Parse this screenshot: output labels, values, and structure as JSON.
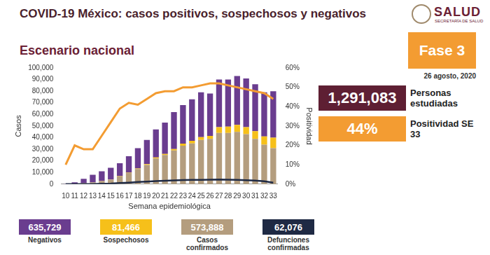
{
  "header": {
    "logo": "SALUD",
    "logo_subtitle": "SECRETARÍA DE SALUD",
    "badge": "Fase 3",
    "date": "26 agosto, 2020"
  },
  "stats": [
    {
      "value": {
        "value": 1291083,
        "label": "1,291,083"
      },
      "label": "Personas estudiadas",
      "color": "#5e1f33"
    },
    {
      "value": {
        "value": 44,
        "label": "44%"
      },
      "label": "Positividad SE 33",
      "color": "#f39c32"
    }
  ],
  "chart_data": {
    "type": "bar",
    "title": "COVID-19 México: casos positivos, sospechosos y negativos",
    "subtitle": "Escenario nacional",
    "xlabel": "Semana epidemiológica",
    "ylabel": "Casos",
    "y2label": "Positividad",
    "categories": [
      "10",
      "11",
      "12",
      "13",
      "14",
      "15",
      "16",
      "17",
      "18",
      "19",
      "20",
      "21",
      "22",
      "23",
      "24",
      "25",
      "26",
      "27",
      "28",
      "29",
      "30",
      "31",
      "32",
      "33"
    ],
    "stacked": true,
    "grid": false,
    "legend": "bottom",
    "ylim": [
      0,
      100000
    ],
    "yticks": [
      0,
      {
        "value": 10000,
        "label": "10,000"
      },
      {
        "value": 20000,
        "label": "20,000"
      },
      {
        "value": 30000,
        "label": "30,000"
      },
      {
        "value": 40000,
        "label": "40,000"
      },
      {
        "value": 50000,
        "label": "50,000"
      },
      {
        "value": 60000,
        "label": "60,000"
      },
      {
        "value": 70000,
        "label": "70,000"
      },
      {
        "value": 80000,
        "label": "80,000"
      },
      {
        "value": 90000,
        "label": "90,000"
      },
      {
        "value": 100000,
        "label": "100,000"
      }
    ],
    "y2lim": [
      0,
      60
    ],
    "y2ticks": [
      {
        "value": 0,
        "label": "0%"
      },
      {
        "value": 10,
        "label": "10%"
      },
      {
        "value": 20,
        "label": "20%"
      },
      {
        "value": 30,
        "label": "30%"
      },
      {
        "value": 40,
        "label": "40%"
      },
      {
        "value": 50,
        "label": "50%"
      },
      {
        "value": 60,
        "label": "60%"
      }
    ],
    "series": [
      {
        "name": "Negativos",
        "type": "bar",
        "color": "#6a3d8f",
        "total": {
          "value": 635729,
          "label": "635,729"
        },
        "values": [
          180,
          1180,
          3650,
          6400,
          8350,
          10000,
          11200,
          14100,
          17500,
          20800,
          24100,
          27000,
          31800,
          33200,
          35800,
          38600,
          36500,
          41000,
          40500,
          42000,
          42000,
          40500,
          38000,
          40000
        ]
      },
      {
        "name": "Sospechosos",
        "type": "bar",
        "color": "#f6c01a",
        "total": {
          "value": 81466,
          "label": "81,466"
        },
        "values": [
          0,
          20,
          50,
          100,
          150,
          200,
          300,
          400,
          500,
          700,
          900,
          1000,
          1200,
          1800,
          2200,
          2400,
          2500,
          5000,
          5500,
          6000,
          6000,
          6500,
          7000,
          9000
        ]
      },
      {
        "name": "Casos confirmados",
        "type": "bar",
        "color": "#b49d7e",
        "total": {
          "value": 573888,
          "label": "573,888"
        },
        "values": [
          20,
          300,
          800,
          1500,
          2500,
          3800,
          6500,
          9500,
          13000,
          16500,
          22000,
          25000,
          29000,
          33000,
          35000,
          38000,
          39000,
          44000,
          44000,
          45000,
          43000,
          39000,
          34000,
          31000
        ]
      },
      {
        "name": "Defunciones confirmadas",
        "type": "line",
        "color": "#1f2a44",
        "marker": "none",
        "line_style": "solid",
        "total": {
          "value": 62076,
          "label": "62,076"
        },
        "values": [
          0,
          0,
          10,
          100,
          300,
          500,
          900,
          1300,
          1800,
          2200,
          2600,
          2900,
          3200,
          3500,
          3600,
          3700,
          3800,
          4000,
          3800,
          3600,
          3400,
          3000,
          2400,
          1200
        ]
      },
      {
        "name": "Positividad",
        "type": "line",
        "axis": "y2",
        "color": "#f39c32",
        "marker": "none",
        "line_style": "solid",
        "values": [
          10,
          20,
          18,
          18,
          25,
          32,
          39,
          42,
          41,
          44,
          47,
          48,
          48,
          50,
          50,
          51,
          52,
          52,
          51,
          50,
          49,
          48,
          47,
          44
        ]
      }
    ]
  }
}
